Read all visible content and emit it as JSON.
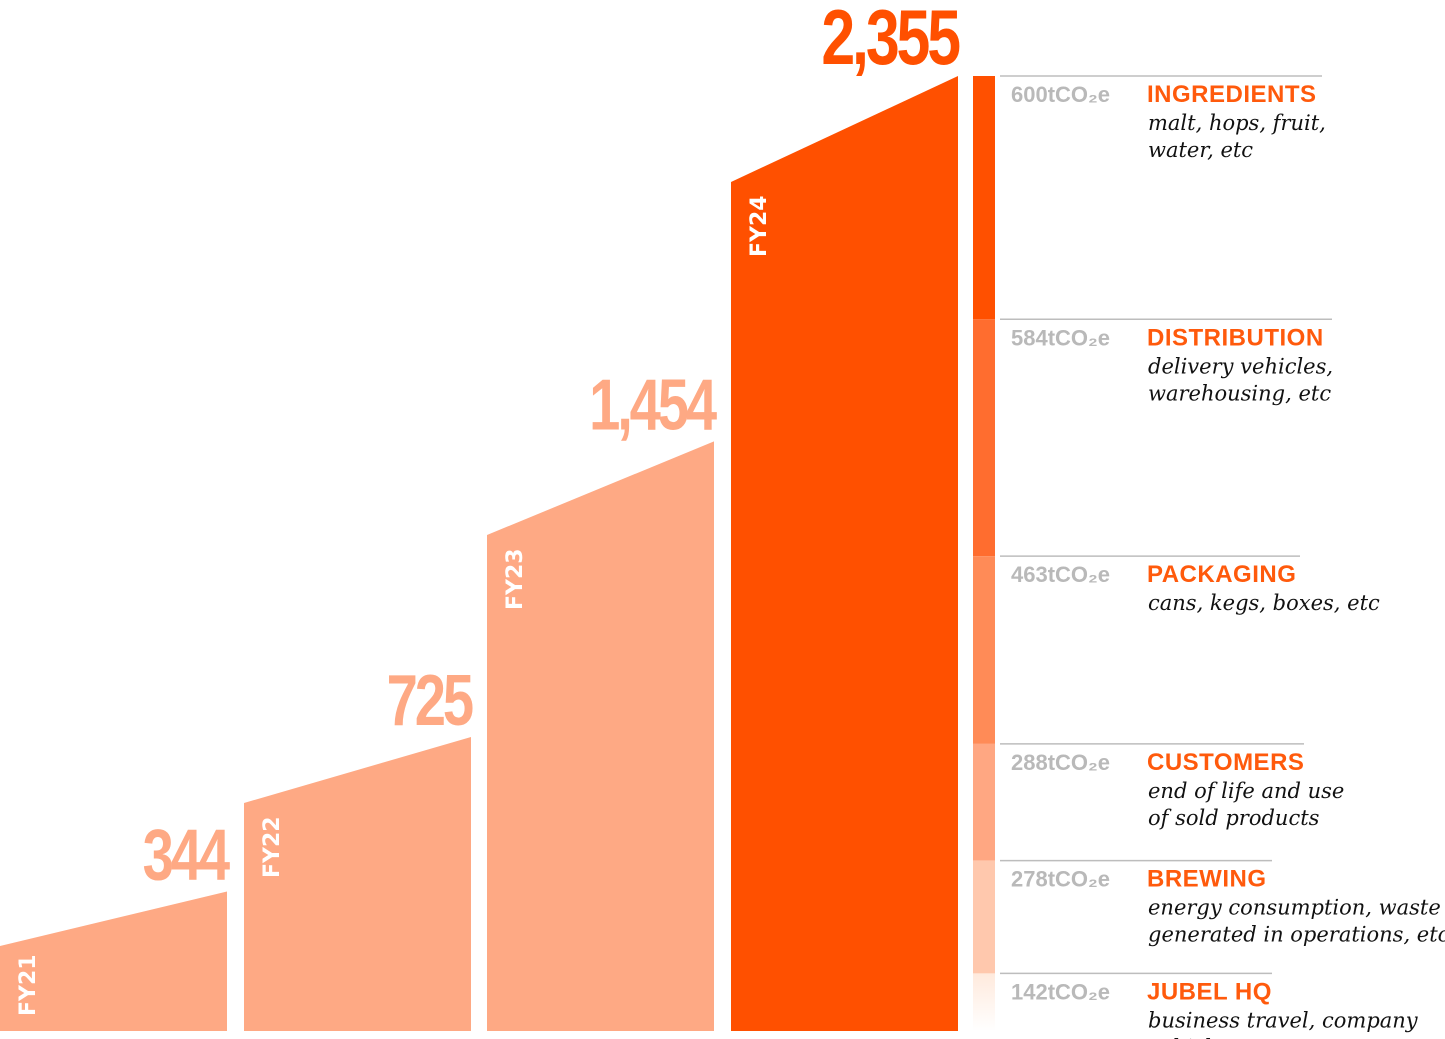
{
  "colors": {
    "highlight": "#ff5000",
    "past_year": "#fea984",
    "breakdown": [
      "#ff5000",
      "#ff6d2f",
      "#ff8b57",
      "#ffa782",
      "#ffc8ad",
      "#ffeadd"
    ]
  },
  "chart_data": [
    {
      "type": "bar",
      "categories": [
        "FY21",
        "FY22",
        "FY23",
        "FY24"
      ],
      "values": [
        344,
        725,
        1454,
        2355
      ],
      "value_labels": [
        "344",
        "725",
        "1,454",
        "2,355"
      ],
      "unit": "tCO₂e"
    },
    {
      "type": "bar",
      "stacked": true,
      "unit": "tCO₂e",
      "total": 2355,
      "segments": [
        {
          "value": 600,
          "amount_label": "600tCO₂e",
          "name": "INGREDIENTS",
          "desc": [
            "malt, hops, fruit,",
            "water, etc"
          ]
        },
        {
          "value": 584,
          "amount_label": "584tCO₂e",
          "name": "DISTRIBUTION",
          "desc": [
            "delivery vehicles,",
            "warehousing, etc"
          ]
        },
        {
          "value": 463,
          "amount_label": "463tCO₂e",
          "name": "PACKAGING",
          "desc": [
            "cans, kegs, boxes, etc"
          ]
        },
        {
          "value": 288,
          "amount_label": "288tCO₂e",
          "name": "CUSTOMERS",
          "desc": [
            "end of life and use",
            "of sold products"
          ]
        },
        {
          "value": 278,
          "amount_label": "278tCO₂e",
          "name": "BREWING",
          "desc": [
            "energy consumption, waste",
            "generated in operations, etc"
          ]
        },
        {
          "value": 142,
          "amount_label": "142tCO₂e",
          "name": "JUBEL HQ",
          "desc": [
            "business travel, company",
            "vehicles, etc"
          ]
        }
      ]
    }
  ]
}
